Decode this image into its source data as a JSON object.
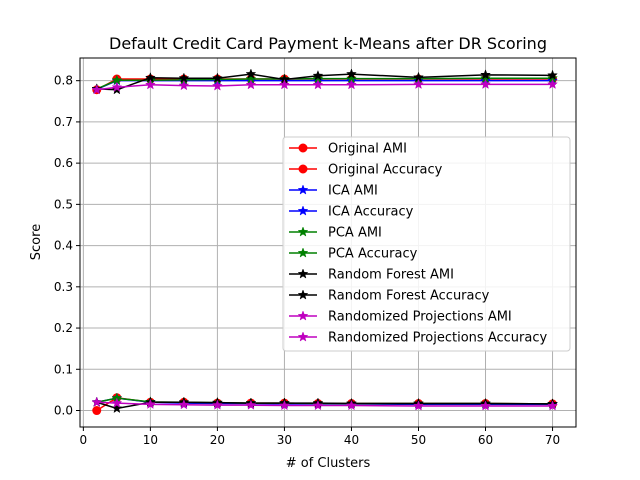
{
  "chart_data": {
    "type": "line",
    "title": "Default Credit Card Payment k-Means after DR Scoring",
    "xlabel": "# of Clusters",
    "ylabel": "Score",
    "xlim": [
      -0.5,
      73.5
    ],
    "ylim": [
      -0.04,
      0.855
    ],
    "xticks": [
      0,
      10,
      20,
      30,
      40,
      50,
      60,
      70
    ],
    "yticks": [
      0.0,
      0.1,
      0.2,
      0.3,
      0.4,
      0.5,
      0.6,
      0.7,
      0.8
    ],
    "grid": true,
    "legend_position": "center-right",
    "x": [
      2,
      5,
      10,
      15,
      20,
      25,
      30,
      35,
      40,
      50,
      60,
      70
    ],
    "series": [
      {
        "name": "Original AMI",
        "color": "#ff0000",
        "marker": "circle",
        "values": [
          0.0,
          0.031,
          0.02,
          0.02,
          0.018,
          0.018,
          0.018,
          0.017,
          0.017,
          0.017,
          0.017,
          0.016
        ]
      },
      {
        "name": "Original Accuracy",
        "color": "#ff0000",
        "marker": "circle",
        "values": [
          0.778,
          0.804,
          0.804,
          0.804,
          0.804,
          0.804,
          0.804,
          0.804,
          0.804,
          0.804,
          0.804,
          0.804
        ]
      },
      {
        "name": "ICA AMI",
        "color": "#0000ff",
        "marker": "star",
        "values": [
          0.02,
          0.03,
          0.02,
          0.018,
          0.017,
          0.017,
          0.016,
          0.016,
          0.016,
          0.015,
          0.015,
          0.015
        ]
      },
      {
        "name": "ICA Accuracy",
        "color": "#0000ff",
        "marker": "star",
        "values": [
          0.779,
          0.8,
          0.8,
          0.8,
          0.8,
          0.8,
          0.8,
          0.8,
          0.8,
          0.8,
          0.8,
          0.8
        ]
      },
      {
        "name": "PCA AMI",
        "color": "#008000",
        "marker": "star",
        "values": [
          0.02,
          0.03,
          0.021,
          0.02,
          0.019,
          0.018,
          0.018,
          0.017,
          0.017,
          0.017,
          0.017,
          0.016
        ]
      },
      {
        "name": "PCA Accuracy",
        "color": "#008000",
        "marker": "star",
        "values": [
          0.78,
          0.801,
          0.801,
          0.802,
          0.803,
          0.804,
          0.804,
          0.805,
          0.805,
          0.805,
          0.806,
          0.806
        ]
      },
      {
        "name": "Random Forest AMI",
        "color": "#000000",
        "marker": "star",
        "values": [
          0.02,
          0.005,
          0.02,
          0.02,
          0.019,
          0.018,
          0.018,
          0.018,
          0.017,
          0.017,
          0.017,
          0.016
        ]
      },
      {
        "name": "Random Forest Accuracy",
        "color": "#000000",
        "marker": "star",
        "values": [
          0.78,
          0.778,
          0.807,
          0.806,
          0.806,
          0.816,
          0.803,
          0.812,
          0.816,
          0.808,
          0.814,
          0.813
        ]
      },
      {
        "name": "Randomized Projections AMI",
        "color": "#bf00bf",
        "marker": "star",
        "values": [
          0.02,
          0.018,
          0.015,
          0.014,
          0.013,
          0.013,
          0.012,
          0.012,
          0.012,
          0.011,
          0.011,
          0.011
        ]
      },
      {
        "name": "Randomized Projections Accuracy",
        "color": "#bf00bf",
        "marker": "star",
        "values": [
          0.778,
          0.784,
          0.79,
          0.788,
          0.787,
          0.79,
          0.79,
          0.79,
          0.79,
          0.791,
          0.791,
          0.791
        ]
      }
    ]
  }
}
